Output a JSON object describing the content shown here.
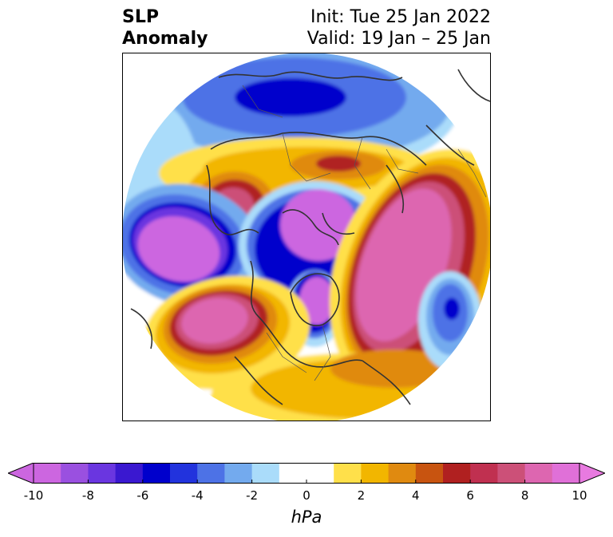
{
  "title": {
    "left_line1": "SLP",
    "left_line2": "Anomaly",
    "right_line1": "Init: Tue 25 Jan 2022",
    "right_line2": "Valid: 19 Jan – 25 Jan"
  },
  "colorbar": {
    "unit": "hPa",
    "min": -10,
    "max": 10,
    "ticks": [
      "-10",
      "-8",
      "-6",
      "-4",
      "-2",
      "0",
      "2",
      "4",
      "6",
      "8",
      "10"
    ],
    "bins": [
      {
        "from": -10,
        "to": -9,
        "color": "#cc66e0"
      },
      {
        "from": -9,
        "to": -8,
        "color": "#9a50e0"
      },
      {
        "from": -8,
        "to": -7,
        "color": "#6a36e0"
      },
      {
        "from": -7,
        "to": -6,
        "color": "#3a18d0"
      },
      {
        "from": -6,
        "to": -5,
        "color": "#0000cc"
      },
      {
        "from": -5,
        "to": -4,
        "color": "#2233dd"
      },
      {
        "from": -4,
        "to": -3,
        "color": "#4d72e6"
      },
      {
        "from": -3,
        "to": -2,
        "color": "#73aaee"
      },
      {
        "from": -2,
        "to": -1,
        "color": "#aadcfa"
      },
      {
        "from": -1,
        "to": 0,
        "color": "#ffffff"
      },
      {
        "from": 0,
        "to": 1,
        "color": "#ffffff"
      },
      {
        "from": 1,
        "to": 2,
        "color": "#ffe04a"
      },
      {
        "from": 2,
        "to": 3,
        "color": "#f2b600"
      },
      {
        "from": 3,
        "to": 4,
        "color": "#e08a10"
      },
      {
        "from": 4,
        "to": 5,
        "color": "#c85410"
      },
      {
        "from": 5,
        "to": 6,
        "color": "#b02020"
      },
      {
        "from": 6,
        "to": 7,
        "color": "#c03050"
      },
      {
        "from": 7,
        "to": 8,
        "color": "#cc5078"
      },
      {
        "from": 8,
        "to": 9,
        "color": "#dd66b0"
      },
      {
        "from": 9,
        "to": 10,
        "color": "#e070d8"
      }
    ],
    "extend_low_color": "#cc66e0",
    "extend_high_color": "#e87ae0"
  },
  "map": {
    "projection": "north-polar-stereographic",
    "field": "sea level pressure anomaly",
    "palette": {
      "strong_neg": "#cc66e0",
      "neg6": "#0000cc",
      "neg4": "#4d72e6",
      "neg2": "#73aaee",
      "neg1": "#aadcfa",
      "pos1": "#ffe04a",
      "pos2": "#f2b600",
      "pos3": "#e08a10",
      "pos5": "#b02020",
      "pos7": "#cc5078",
      "strong_pos": "#dd66b0",
      "coast": "#333333"
    }
  }
}
